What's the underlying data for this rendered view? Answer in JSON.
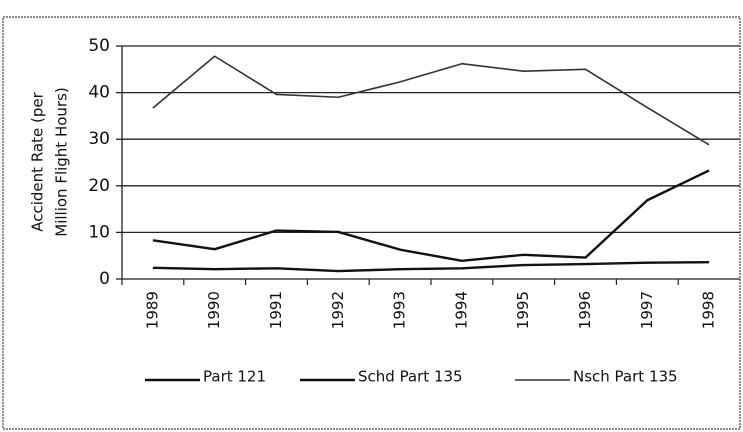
{
  "chart_data": {
    "type": "line",
    "ylabel": [
      "Accident Rate (per",
      "Million Flight Hours)"
    ],
    "categories": [
      "1989",
      "1990",
      "1991",
      "1992",
      "1993",
      "1994",
      "1995",
      "1996",
      "1997",
      "1998"
    ],
    "series": [
      {
        "name": "Part 121",
        "color": "#111111",
        "width": 2.4,
        "values": [
          2.4,
          2.1,
          2.3,
          1.7,
          2.1,
          2.3,
          3.0,
          3.2,
          3.5,
          3.6
        ]
      },
      {
        "name": "Schd Part 135",
        "color": "#111111",
        "width": 2.4,
        "values": [
          8.3,
          6.4,
          10.4,
          10.1,
          6.3,
          3.9,
          5.2,
          4.6,
          16.9,
          23.3
        ]
      },
      {
        "name": "Nsch Part 135",
        "color": "#333333",
        "width": 1.6,
        "values": [
          36.7,
          47.8,
          39.6,
          39.0,
          42.3,
          46.2,
          44.6,
          45.0,
          36.8,
          28.8
        ]
      }
    ],
    "ylim": [
      0,
      50
    ],
    "yticks": [
      0,
      10,
      20,
      30,
      40,
      50
    ],
    "grid": true
  }
}
